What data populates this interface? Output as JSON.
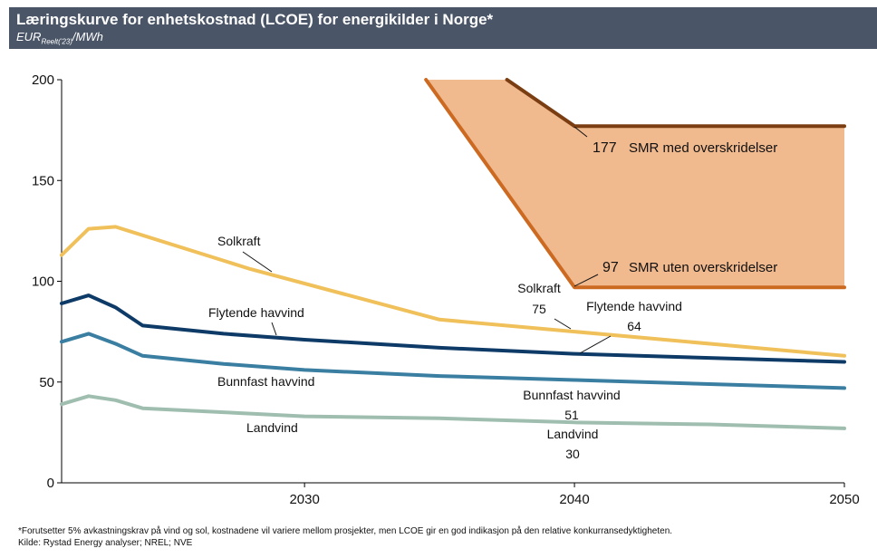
{
  "header": {
    "title": "Læringskurve for enhetskostnad (LCOE) for energikilder i Norge*",
    "unit_main": "EUR",
    "unit_sub": "Reelt('23)",
    "unit_tail": "/MWh"
  },
  "chart_data": {
    "type": "line",
    "title": "Læringskurve for enhetskostnad (LCOE) for energikilder i Norge*",
    "xlabel": "",
    "ylabel": "",
    "xlim": [
      2021,
      2050
    ],
    "ylim": [
      0,
      200
    ],
    "x_ticks": [
      2030,
      2040,
      2050
    ],
    "y_ticks": [
      0,
      50,
      100,
      150,
      200
    ],
    "grid": false,
    "series": [
      {
        "name": "Solkraft",
        "color": "#f0c05a",
        "points": [
          [
            2021,
            113
          ],
          [
            2022,
            126
          ],
          [
            2023,
            127
          ],
          [
            2028,
            106
          ],
          [
            2035,
            81
          ],
          [
            2040,
            75
          ],
          [
            2050,
            63
          ]
        ]
      },
      {
        "name": "Flytende havvind",
        "color": "#0d3a66",
        "points": [
          [
            2021,
            89
          ],
          [
            2022,
            93
          ],
          [
            2023,
            87
          ],
          [
            2024,
            78
          ],
          [
            2027,
            74
          ],
          [
            2030,
            71
          ],
          [
            2035,
            67
          ],
          [
            2040,
            64
          ],
          [
            2045,
            62
          ],
          [
            2050,
            60
          ]
        ]
      },
      {
        "name": "Bunnfast havvind",
        "color": "#3a7ea1",
        "points": [
          [
            2021,
            70
          ],
          [
            2022,
            74
          ],
          [
            2023,
            69
          ],
          [
            2024,
            63
          ],
          [
            2027,
            59
          ],
          [
            2030,
            56
          ],
          [
            2035,
            53
          ],
          [
            2040,
            51
          ],
          [
            2045,
            49
          ],
          [
            2050,
            47
          ]
        ]
      },
      {
        "name": "Landvind",
        "color": "#9fbeb0",
        "points": [
          [
            2021,
            39
          ],
          [
            2022,
            43
          ],
          [
            2023,
            41
          ],
          [
            2024,
            37
          ],
          [
            2027,
            35
          ],
          [
            2030,
            33
          ],
          [
            2035,
            32
          ],
          [
            2040,
            30
          ],
          [
            2045,
            29
          ],
          [
            2050,
            27
          ]
        ]
      },
      {
        "name": "SMR med overskridelser",
        "color": "#7a3e12",
        "points": [
          [
            2037.5,
            200
          ],
          [
            2040,
            177
          ],
          [
            2050,
            177
          ]
        ]
      },
      {
        "name": "SMR uten overskridelser",
        "color": "#cc6a22",
        "points": [
          [
            2034.5,
            200
          ],
          [
            2040,
            97
          ],
          [
            2050,
            97
          ]
        ]
      }
    ],
    "smr_band": {
      "fill": "#f0b98e",
      "upper": [
        [
          2034.5,
          200
        ],
        [
          2037.5,
          200
        ],
        [
          2040,
          177
        ],
        [
          2050,
          177
        ]
      ],
      "lower": [
        [
          2034.5,
          200
        ],
        [
          2040,
          97
        ],
        [
          2050,
          97
        ]
      ]
    },
    "annotations": {
      "solkraft_label": "Solkraft",
      "flytende_label": "Flytende havvind",
      "bunnfast_label": "Bunnfast havvind",
      "landvind_label": "Landvind",
      "solkraft_2040_name": "Solkraft",
      "solkraft_2040_value": "75",
      "flytende_2040_name": "Flytende havvind",
      "flytende_2040_value": "64",
      "bunnfast_2040_name": "Bunnfast havvind",
      "bunnfast_2040_value": "51",
      "landvind_2040_name": "Landvind",
      "landvind_2040_value": "30",
      "smr_high_value": "177",
      "smr_high_name": "SMR med overskridelser",
      "smr_low_value": "97",
      "smr_low_name": "SMR uten overskridelser"
    }
  },
  "footer": {
    "note": "*Forutsetter 5% avkastningskrav på vind og sol, kostnadene vil variere mellom prosjekter, men LCOE gir en god indikasjon på den relative konkurransedyktigheten.",
    "source": "Kilde: Rystad Energy analyser; NREL; NVE"
  }
}
